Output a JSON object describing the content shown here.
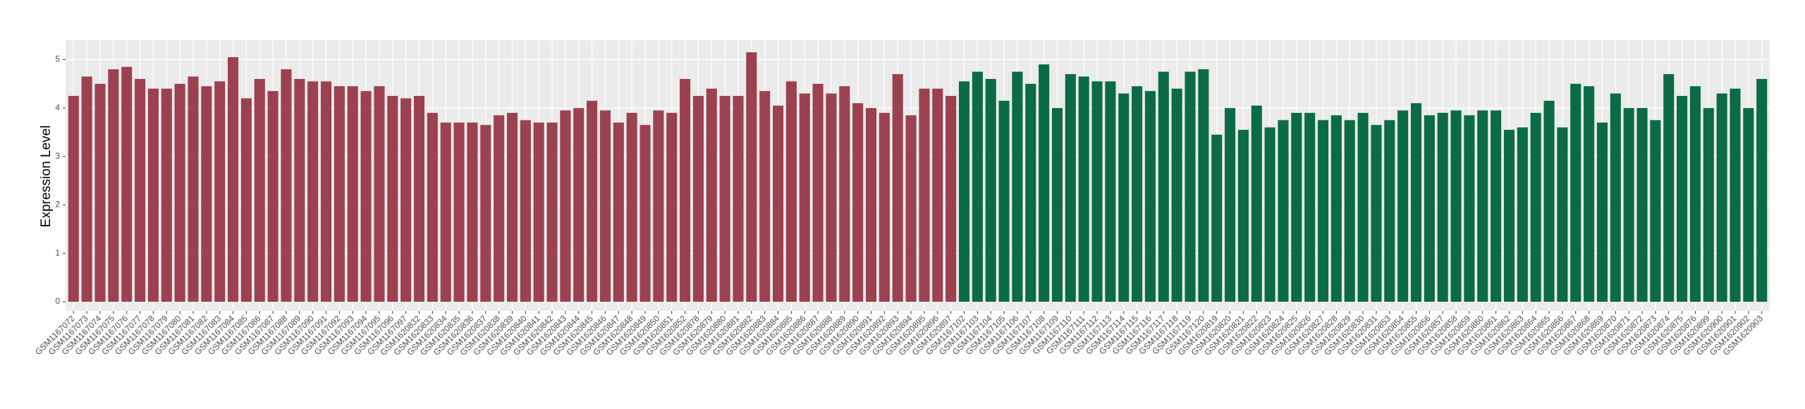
{
  "chart_data": {
    "type": "bar",
    "y_label": "Expression Level",
    "categories": [
      "GSM1167072",
      "GSM1167073",
      "GSM1167074",
      "GSM1167075",
      "GSM1167076",
      "GSM1167077",
      "GSM1167078",
      "GSM1167079",
      "GSM1167080",
      "GSM1167081",
      "GSM1167082",
      "GSM1167083",
      "GSM1167084",
      "GSM1167085",
      "GSM1167086",
      "GSM1167087",
      "GSM1167088",
      "GSM1167089",
      "GSM1167090",
      "GSM1167091",
      "GSM1167092",
      "GSM1167093",
      "GSM1167094",
      "GSM1167095",
      "GSM1167096",
      "GSM1167097",
      "GSM1620832",
      "GSM1620833",
      "GSM1620834",
      "GSM1620835",
      "GSM1620836",
      "GSM1620837",
      "GSM1620838",
      "GSM1620839",
      "GSM1620840",
      "GSM1620841",
      "GSM1620842",
      "GSM1620843",
      "GSM1620844",
      "GSM1620845",
      "GSM1620846",
      "GSM1620847",
      "GSM1620848",
      "GSM1620849",
      "GSM1620850",
      "GSM1620851",
      "GSM1620852",
      "GSM1620878",
      "GSM1620879",
      "GSM1620880",
      "GSM1620881",
      "GSM1620882",
      "GSM1620883",
      "GSM1620884",
      "GSM1620885",
      "GSM1620886",
      "GSM1620887",
      "GSM1620888",
      "GSM1620889",
      "GSM1620890",
      "GSM1620891",
      "GSM1620892",
      "GSM1620893",
      "GSM1620894",
      "GSM1620895",
      "GSM1620896",
      "GSM1620897",
      "GSM1167102",
      "GSM1167103",
      "GSM1167104",
      "GSM1167105",
      "GSM1167106",
      "GSM1167107",
      "GSM1167108",
      "GSM1167109",
      "GSM1167110",
      "GSM1167111",
      "GSM1167112",
      "GSM1167113",
      "GSM1167114",
      "GSM1167115",
      "GSM1167116",
      "GSM1167117",
      "GSM1167118",
      "GSM1167119",
      "GSM1167120",
      "GSM1620819",
      "GSM1620820",
      "GSM1620821",
      "GSM1620822",
      "GSM1620823",
      "GSM1620824",
      "GSM1620825",
      "GSM1620826",
      "GSM1620827",
      "GSM1620828",
      "GSM1620829",
      "GSM1620830",
      "GSM1620831",
      "GSM1620853",
      "GSM1620854",
      "GSM1620855",
      "GSM1620856",
      "GSM1620857",
      "GSM1620858",
      "GSM1620859",
      "GSM1620860",
      "GSM1620861",
      "GSM1620862",
      "GSM1620863",
      "GSM1620864",
      "GSM1620865",
      "GSM1620866",
      "GSM1620867",
      "GSM1620868",
      "GSM1620869",
      "GSM1620870",
      "GSM1620871",
      "GSM1620872",
      "GSM1620873",
      "GSM1620874",
      "GSM1620875",
      "GSM1620876",
      "GSM1620899",
      "GSM1620900",
      "GSM1620901",
      "GSM1620902",
      "GSM1620903"
    ],
    "series": [
      {
        "color": "#9c4150",
        "values": [
          4.25,
          4.65,
          4.5,
          4.8,
          4.85,
          4.6,
          4.4,
          4.4,
          4.5,
          4.65,
          4.45,
          4.55,
          5.05,
          4.2,
          4.6,
          4.35,
          4.8,
          4.6,
          4.55,
          4.55,
          4.45,
          4.45,
          4.35,
          4.45,
          4.25,
          4.2,
          4.25,
          3.9,
          3.7,
          3.7,
          3.7,
          3.65,
          3.85,
          3.9,
          3.75,
          3.7,
          3.7,
          3.95,
          4.0,
          4.15,
          3.95,
          3.7,
          3.9,
          3.65,
          3.95,
          3.9,
          4.6,
          4.25,
          4.4,
          4.25,
          4.25,
          5.15,
          4.35,
          4.05,
          4.55,
          4.3,
          4.5,
          4.3,
          4.45,
          4.1,
          4.0,
          3.9,
          4.7,
          3.85,
          4.4,
          4.4,
          4.25,
          null,
          null,
          null,
          null,
          null,
          null,
          null,
          null,
          null,
          null,
          null,
          null,
          null,
          null,
          null,
          null,
          null,
          null,
          null,
          null,
          null,
          null,
          null,
          null,
          null,
          null,
          null,
          null,
          null,
          null,
          null,
          null,
          null,
          null,
          null,
          null,
          null,
          null,
          null,
          null,
          null,
          null,
          null,
          null,
          null,
          null,
          null,
          null,
          null,
          null,
          null,
          null,
          null,
          null,
          null,
          null,
          null,
          null,
          null,
          null,
          null
        ]
      },
      {
        "color": "#0b6b45",
        "values": [
          null,
          null,
          null,
          null,
          null,
          null,
          null,
          null,
          null,
          null,
          null,
          null,
          null,
          null,
          null,
          null,
          null,
          null,
          null,
          null,
          null,
          null,
          null,
          null,
          null,
          null,
          null,
          null,
          null,
          null,
          null,
          null,
          null,
          null,
          null,
          null,
          null,
          null,
          null,
          null,
          null,
          null,
          null,
          null,
          null,
          null,
          null,
          null,
          null,
          null,
          null,
          null,
          null,
          null,
          null,
          null,
          null,
          null,
          null,
          null,
          null,
          null,
          null,
          null,
          null,
          null,
          null,
          4.55,
          4.75,
          4.6,
          4.15,
          4.75,
          4.5,
          4.9,
          4.0,
          4.7,
          4.65,
          4.55,
          4.55,
          4.3,
          4.45,
          4.35,
          4.75,
          4.4,
          4.75,
          4.8,
          3.45,
          4.0,
          3.55,
          4.05,
          3.6,
          3.75,
          3.9,
          3.9,
          3.75,
          3.85,
          3.75,
          3.9,
          3.65,
          3.75,
          3.95,
          4.1,
          3.85,
          3.9,
          3.95,
          3.85,
          3.95,
          3.95,
          3.55,
          3.6,
          3.9,
          4.15,
          3.6,
          4.5,
          4.45,
          3.7,
          4.3,
          4.0,
          4.0,
          3.75,
          4.7,
          4.25,
          4.45,
          4.0,
          4.3,
          4.4,
          4.0,
          4.6
        ]
      }
    ],
    "ylim": [
      -0.19,
      5.4
    ],
    "yticks": [
      0,
      1,
      2,
      3,
      4,
      5
    ],
    "grid": true
  }
}
